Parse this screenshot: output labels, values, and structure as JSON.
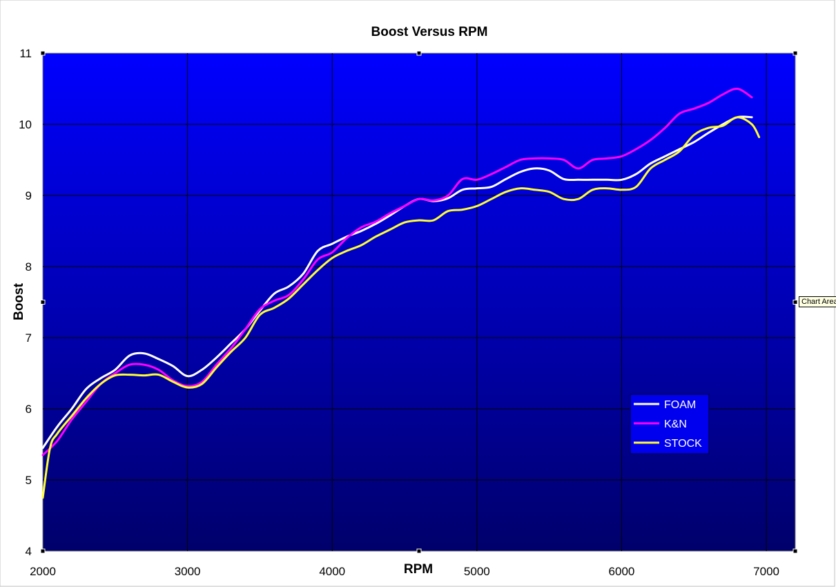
{
  "chart_data": {
    "type": "line",
    "title": "Boost Versus RPM",
    "xlabel": "RPM",
    "ylabel": "Boost",
    "xlim": [
      2000,
      7200
    ],
    "ylim": [
      4,
      11
    ],
    "xticks": [
      2000,
      3000,
      4000,
      5000,
      6000,
      7000
    ],
    "yticks": [
      4,
      5,
      6,
      7,
      8,
      9,
      10,
      11
    ],
    "grid": true,
    "legend_position": "bottom-right",
    "background": {
      "top": "#0000ff",
      "bottom": "#00006b"
    },
    "series": [
      {
        "name": "FOAM",
        "color": "#ffffff",
        "x": [
          2000,
          2100,
          2200,
          2300,
          2400,
          2500,
          2600,
          2700,
          2800,
          2900,
          3000,
          3100,
          3200,
          3300,
          3400,
          3500,
          3600,
          3700,
          3800,
          3900,
          4000,
          4100,
          4200,
          4300,
          4400,
          4500,
          4600,
          4700,
          4800,
          4900,
          5000,
          5100,
          5200,
          5300,
          5400,
          5500,
          5600,
          5700,
          5800,
          5900,
          6000,
          6100,
          6200,
          6300,
          6400,
          6500,
          6600,
          6700,
          6800,
          6900
        ],
        "values": [
          5.45,
          5.75,
          6.0,
          6.28,
          6.43,
          6.55,
          6.75,
          6.78,
          6.7,
          6.6,
          6.46,
          6.55,
          6.72,
          6.92,
          7.12,
          7.38,
          7.62,
          7.72,
          7.9,
          8.22,
          8.32,
          8.42,
          8.5,
          8.6,
          8.72,
          8.85,
          8.95,
          8.92,
          8.96,
          9.08,
          9.1,
          9.12,
          9.23,
          9.33,
          9.38,
          9.35,
          9.23,
          9.22,
          9.22,
          9.22,
          9.22,
          9.3,
          9.45,
          9.55,
          9.65,
          9.75,
          9.88,
          10.0,
          10.1,
          10.1
        ]
      },
      {
        "name": "K&N",
        "color": "#ff00ff",
        "x": [
          2000,
          2100,
          2200,
          2300,
          2400,
          2500,
          2600,
          2700,
          2800,
          2900,
          3000,
          3100,
          3200,
          3300,
          3400,
          3500,
          3600,
          3700,
          3800,
          3900,
          4000,
          4100,
          4200,
          4300,
          4400,
          4500,
          4600,
          4700,
          4800,
          4900,
          5000,
          5100,
          5200,
          5300,
          5400,
          5500,
          5600,
          5700,
          5800,
          5900,
          6000,
          6100,
          6200,
          6300,
          6400,
          6500,
          6600,
          6700,
          6800,
          6900
        ],
        "values": [
          5.35,
          5.55,
          5.85,
          6.1,
          6.35,
          6.5,
          6.62,
          6.62,
          6.55,
          6.4,
          6.32,
          6.38,
          6.62,
          6.85,
          7.12,
          7.4,
          7.52,
          7.6,
          7.82,
          8.1,
          8.2,
          8.4,
          8.55,
          8.63,
          8.75,
          8.85,
          8.95,
          8.93,
          9.0,
          9.23,
          9.22,
          9.3,
          9.4,
          9.5,
          9.52,
          9.52,
          9.5,
          9.38,
          9.5,
          9.52,
          9.55,
          9.65,
          9.78,
          9.95,
          10.15,
          10.22,
          10.3,
          10.42,
          10.5,
          10.38
        ]
      },
      {
        "name": "STOCK",
        "color": "#ffff33",
        "x": [
          2000,
          2050,
          2100,
          2200,
          2300,
          2400,
          2500,
          2600,
          2700,
          2800,
          2900,
          3000,
          3100,
          3200,
          3300,
          3400,
          3500,
          3600,
          3700,
          3800,
          3900,
          4000,
          4100,
          4200,
          4300,
          4400,
          4500,
          4600,
          4700,
          4800,
          4900,
          5000,
          5100,
          5200,
          5300,
          5400,
          5500,
          5600,
          5700,
          5800,
          5900,
          6000,
          6100,
          6200,
          6300,
          6400,
          6500,
          6600,
          6700,
          6800,
          6900,
          6950
        ],
        "values": [
          4.75,
          5.45,
          5.65,
          5.9,
          6.15,
          6.35,
          6.47,
          6.48,
          6.47,
          6.48,
          6.38,
          6.3,
          6.35,
          6.58,
          6.8,
          7.0,
          7.32,
          7.42,
          7.55,
          7.75,
          7.95,
          8.12,
          8.22,
          8.3,
          8.42,
          8.52,
          8.62,
          8.65,
          8.65,
          8.78,
          8.8,
          8.85,
          8.95,
          9.05,
          9.1,
          9.08,
          9.05,
          8.95,
          8.95,
          9.08,
          9.1,
          9.08,
          9.12,
          9.38,
          9.5,
          9.62,
          9.85,
          9.95,
          9.98,
          10.1,
          10.0,
          9.82
        ]
      }
    ]
  },
  "tooltip": "Chart Area"
}
